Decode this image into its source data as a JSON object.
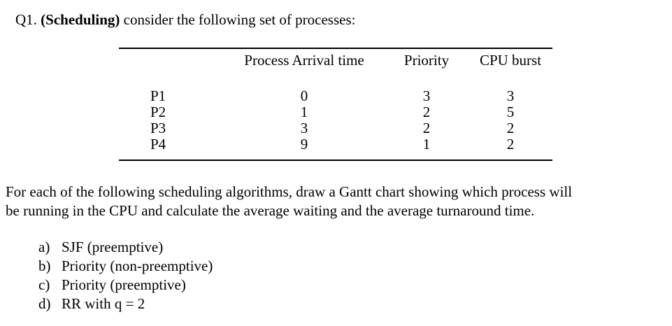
{
  "colors": {
    "text": "#000000",
    "background": "#ffffff"
  },
  "title": {
    "prefix": "Q1. ",
    "emphasis": "(Scheduling)",
    "rest": " consider the following set of processes:"
  },
  "table": {
    "headers": {
      "process": "",
      "arrival": "Process Arrival time",
      "priority": "Priority",
      "burst": "CPU burst"
    },
    "rows": [
      {
        "process": "P1",
        "arrival": "0",
        "priority": "3",
        "burst": "3"
      },
      {
        "process": "P2",
        "arrival": "1",
        "priority": "2",
        "burst": "5"
      },
      {
        "process": "P3",
        "arrival": "3",
        "priority": "2",
        "burst": "2"
      },
      {
        "process": "P4",
        "arrival": "9",
        "priority": "1",
        "burst": "2"
      }
    ]
  },
  "paragraph": {
    "lines": [
      "For each of the following scheduling algorithms, draw a Gantt chart showing which process will",
      "be running in the CPU and calculate the average waiting and the average turnaround time."
    ]
  },
  "list": {
    "items": [
      {
        "marker": "a)",
        "label": "SJF (preemptive)"
      },
      {
        "marker": "b)",
        "label": "Priority (non-preemptive)"
      },
      {
        "marker": "c)",
        "label": "Priority (preemptive)"
      },
      {
        "marker": "d)",
        "label": "RR with q = 2"
      }
    ]
  }
}
